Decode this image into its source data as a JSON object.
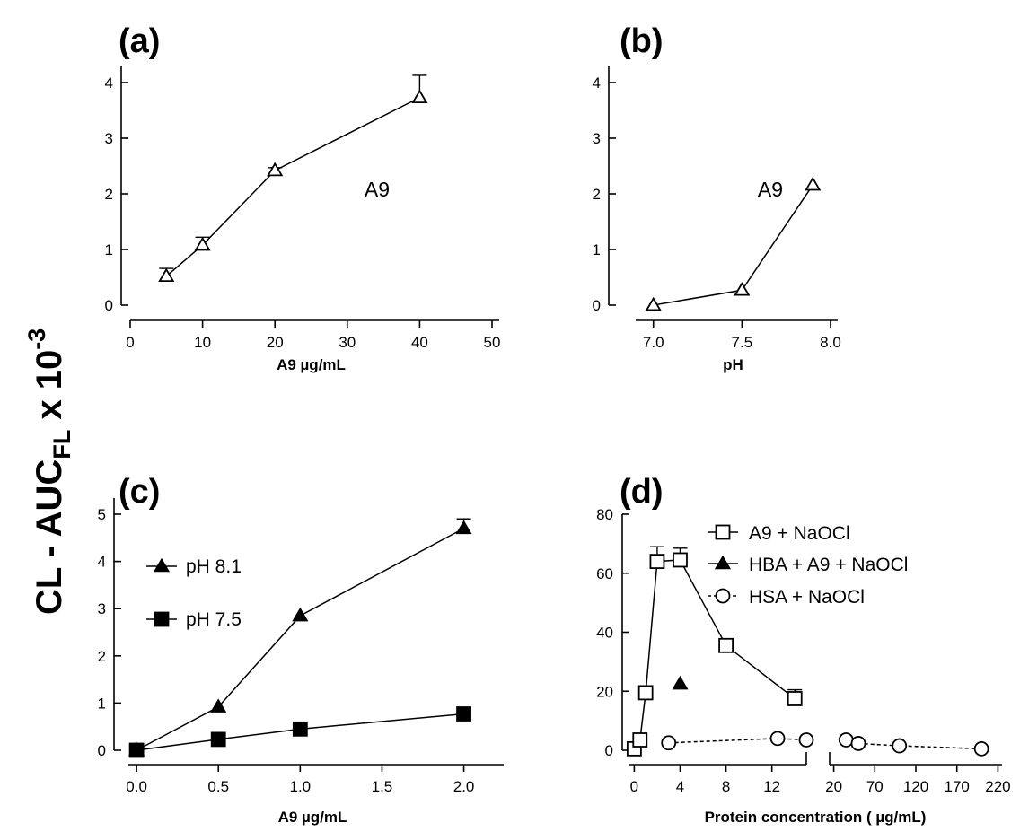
{
  "figure": {
    "y_label": "CL - AUC",
    "y_label_subscript": "FL",
    "y_label_suffix": " x 10",
    "y_label_exponent": "-3"
  },
  "chart_data": [
    {
      "panel": "(a)",
      "type": "line",
      "xlabel": "A9 µg/mL",
      "xlim": [
        0,
        50
      ],
      "ylim": [
        0,
        4
      ],
      "x_ticks": [
        0,
        10,
        20,
        30,
        40,
        50
      ],
      "y_ticks": [
        0,
        1,
        2,
        3,
        4
      ],
      "annotation": "A9",
      "series": [
        {
          "marker": "triangle-open",
          "x": [
            5,
            10,
            20,
            40
          ],
          "y": [
            0.52,
            1.08,
            2.42,
            3.73
          ],
          "err": [
            0.14,
            0.14,
            0.05,
            0.4
          ]
        }
      ]
    },
    {
      "panel": "(b)",
      "type": "line",
      "xlabel": "pH",
      "xlim": [
        6.9,
        8.0
      ],
      "ylim": [
        0,
        4
      ],
      "x_ticks": [
        "7.0",
        "7.5",
        "8.0"
      ],
      "y_ticks": [
        0,
        1,
        2,
        3,
        4
      ],
      "annotation": "A9",
      "series": [
        {
          "marker": "triangle-open",
          "x": [
            7.0,
            7.5,
            7.9
          ],
          "y": [
            0.0,
            0.27,
            2.16
          ],
          "err": [
            0,
            0,
            0
          ]
        }
      ]
    },
    {
      "panel": "(c)",
      "type": "line",
      "xlabel": "A9 µg/mL",
      "xlim": [
        -0.05,
        2.2
      ],
      "ylim": [
        0,
        5
      ],
      "x_ticks": [
        "0.0",
        "0.5",
        "1.0",
        "1.5",
        "2.0"
      ],
      "y_ticks": [
        0,
        1,
        2,
        3,
        4,
        5
      ],
      "legend_position": "upper-left",
      "series": [
        {
          "name": "pH 8.1",
          "marker": "triangle-filled",
          "x": [
            0,
            0.5,
            1.0,
            2.0
          ],
          "y": [
            0.0,
            0.92,
            2.85,
            4.7
          ],
          "err": [
            0,
            0,
            0,
            0.2
          ]
        },
        {
          "name": "pH 7.5",
          "marker": "square-filled",
          "x": [
            0,
            0.5,
            1.0,
            2.0
          ],
          "y": [
            0.0,
            0.23,
            0.45,
            0.77
          ],
          "err": [
            0,
            0,
            0,
            0
          ]
        }
      ]
    },
    {
      "panel": "(d)",
      "type": "line",
      "xlabel": "Protein concentration ( µg/mL)",
      "ylim": [
        0,
        80
      ],
      "y_ticks": [
        0,
        20,
        40,
        60,
        80
      ],
      "x_ticks_left": [
        "0",
        "4",
        "8",
        "12"
      ],
      "x_ticks_right": [
        "20",
        "70",
        "120",
        "170",
        "220"
      ],
      "x_segments": [
        [
          -0.5,
          15
        ],
        [
          15,
          225
        ]
      ],
      "legend_position": "upper-right",
      "series": [
        {
          "name": "A9 + NaOCl",
          "marker": "square-open",
          "line": "solid",
          "x": [
            0,
            0.5,
            1,
            2,
            4,
            8,
            14
          ],
          "y": [
            0.5,
            3.5,
            19.5,
            64,
            64.5,
            35.5,
            17.5
          ],
          "err": [
            0,
            0,
            0,
            5,
            4,
            0,
            3
          ]
        },
        {
          "name": "HBA + A9 + NaOCl",
          "marker": "triangle-filled",
          "line": "none",
          "x": [
            4
          ],
          "y": [
            22.5
          ],
          "err": [
            0
          ]
        },
        {
          "name": "HSA + NaOCl",
          "marker": "circle-open",
          "line": "dashed",
          "x": [
            3,
            12.5,
            15,
            35,
            50,
            100,
            200
          ],
          "y": [
            2.5,
            4.0,
            3.5,
            3.5,
            2.3,
            1.5,
            0.5
          ],
          "err": [
            0,
            0,
            0,
            0,
            0,
            0,
            0
          ]
        }
      ]
    }
  ]
}
